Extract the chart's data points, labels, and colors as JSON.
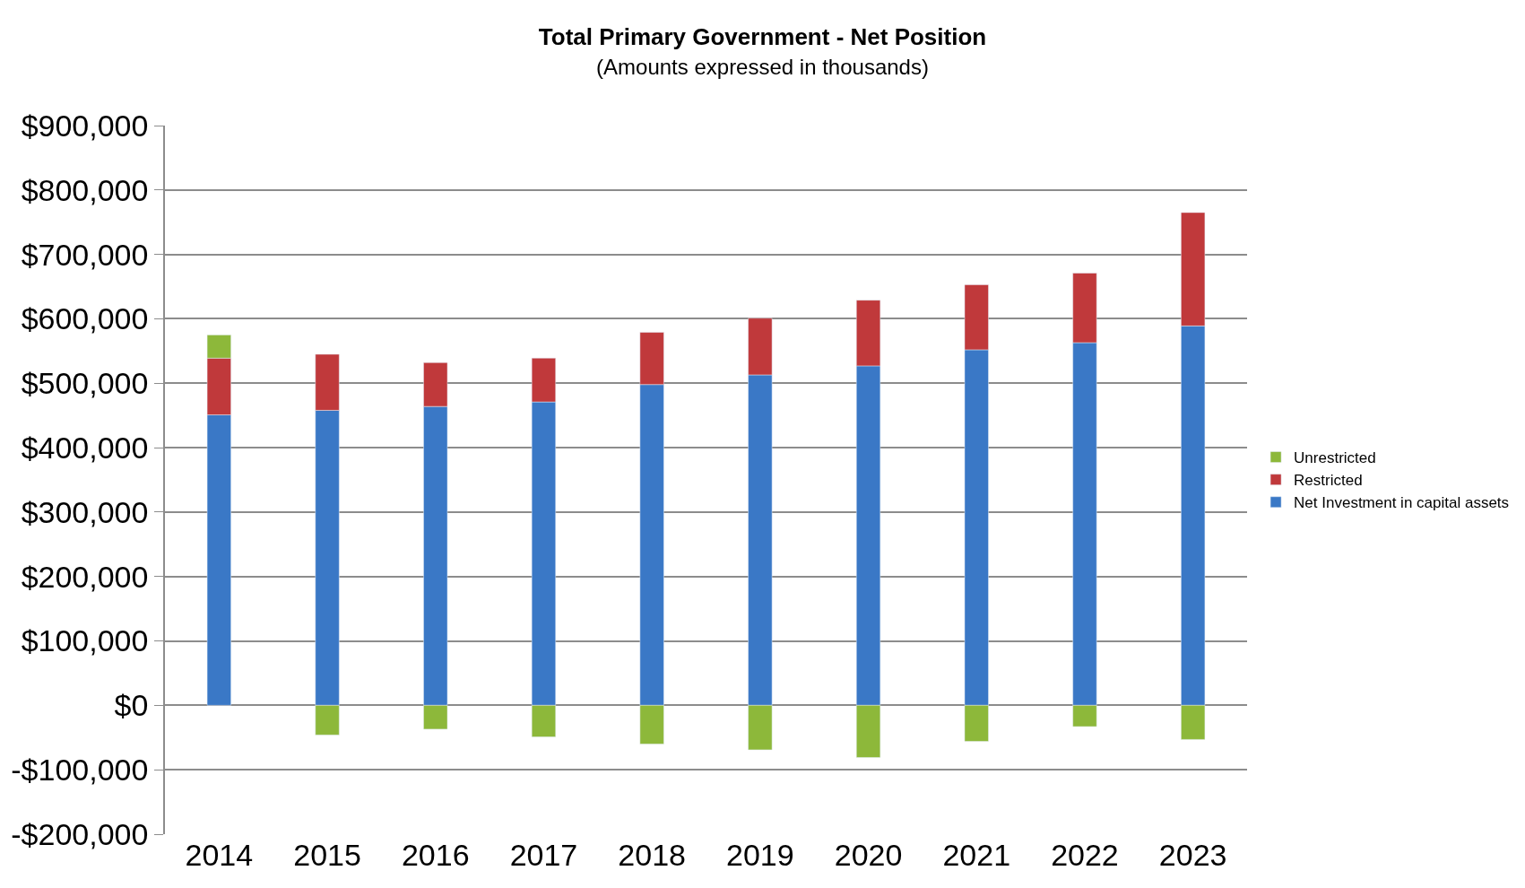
{
  "chart_data": {
    "type": "bar",
    "title": "Total Primary Government - Net Position",
    "subtitle": "(Amounts expressed in thousands)",
    "categories": [
      "2014",
      "2015",
      "2016",
      "2017",
      "2018",
      "2019",
      "2020",
      "2021",
      "2022",
      "2023"
    ],
    "stacked": true,
    "series": [
      {
        "name": "Net Investment in capital assets",
        "color": "#3a78c6",
        "values": [
          451000,
          458000,
          464000,
          471000,
          498000,
          513000,
          527000,
          552000,
          563000,
          589000
        ]
      },
      {
        "name": "Restricted",
        "color": "#c0393b",
        "values": [
          88000,
          87000,
          68000,
          68000,
          81000,
          88000,
          102000,
          101000,
          108000,
          176000
        ]
      },
      {
        "name": "Unrestricted",
        "color": "#8db83a",
        "values": [
          36000,
          -46000,
          -37000,
          -49000,
          -60000,
          -69000,
          -81000,
          -56000,
          -33000,
          -53000
        ]
      }
    ],
    "ylim": [
      -200000,
      900000
    ],
    "yticks": [
      {
        "value": -200000,
        "label": "-$200,000"
      },
      {
        "value": -100000,
        "label": "-$100,000"
      },
      {
        "value": 0,
        "label": "$0"
      },
      {
        "value": 100000,
        "label": "$100,000"
      },
      {
        "value": 200000,
        "label": "$200,000"
      },
      {
        "value": 300000,
        "label": "$300,000"
      },
      {
        "value": 400000,
        "label": "$400,000"
      },
      {
        "value": 500000,
        "label": "$500,000"
      },
      {
        "value": 600000,
        "label": "$600,000"
      },
      {
        "value": 700000,
        "label": "$700,000"
      },
      {
        "value": 800000,
        "label": "$800,000"
      },
      {
        "value": 900000,
        "label": "$900,000"
      }
    ],
    "grid": "y",
    "legend": "right"
  }
}
